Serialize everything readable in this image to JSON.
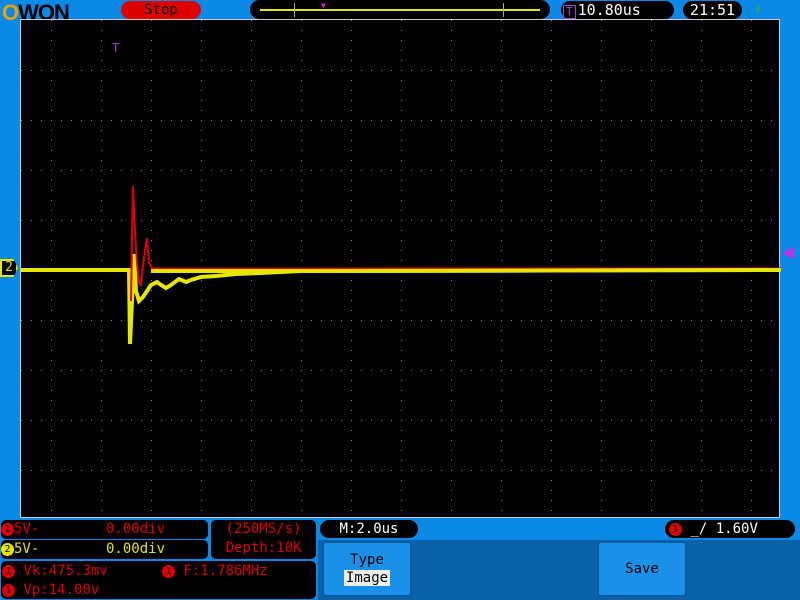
{
  "header": {
    "logo": "OWON",
    "run_state": "Stop",
    "trigger_time": "10.80us",
    "clock": "21:51",
    "trigger_marker": "T",
    "usb_icon": "usb-icon"
  },
  "channels": [
    {
      "id": "1",
      "scale": "5V-",
      "offset": "0.00div",
      "color": "#e00000"
    },
    {
      "id": "2",
      "scale": "5V-",
      "offset": "0.00div",
      "color": "#e6e600"
    }
  ],
  "acquisition": {
    "sample_rate": "(250MS/s)",
    "depth": "Depth:10K"
  },
  "timebase": "M:2.0us",
  "trigger": {
    "channel": "1",
    "level": "1.60V",
    "edge_icon": "rising-edge-icon"
  },
  "measurements": [
    {
      "channel": "1",
      "text": "Vk:475.3mv"
    },
    {
      "channel": "1",
      "text": "F:1.786MHz"
    },
    {
      "channel": "1",
      "text": "Vp:14.00v"
    }
  ],
  "menu": {
    "type_label": "Type",
    "type_value": "Image",
    "save_label": "Save"
  },
  "ch2_marker": "2"
}
